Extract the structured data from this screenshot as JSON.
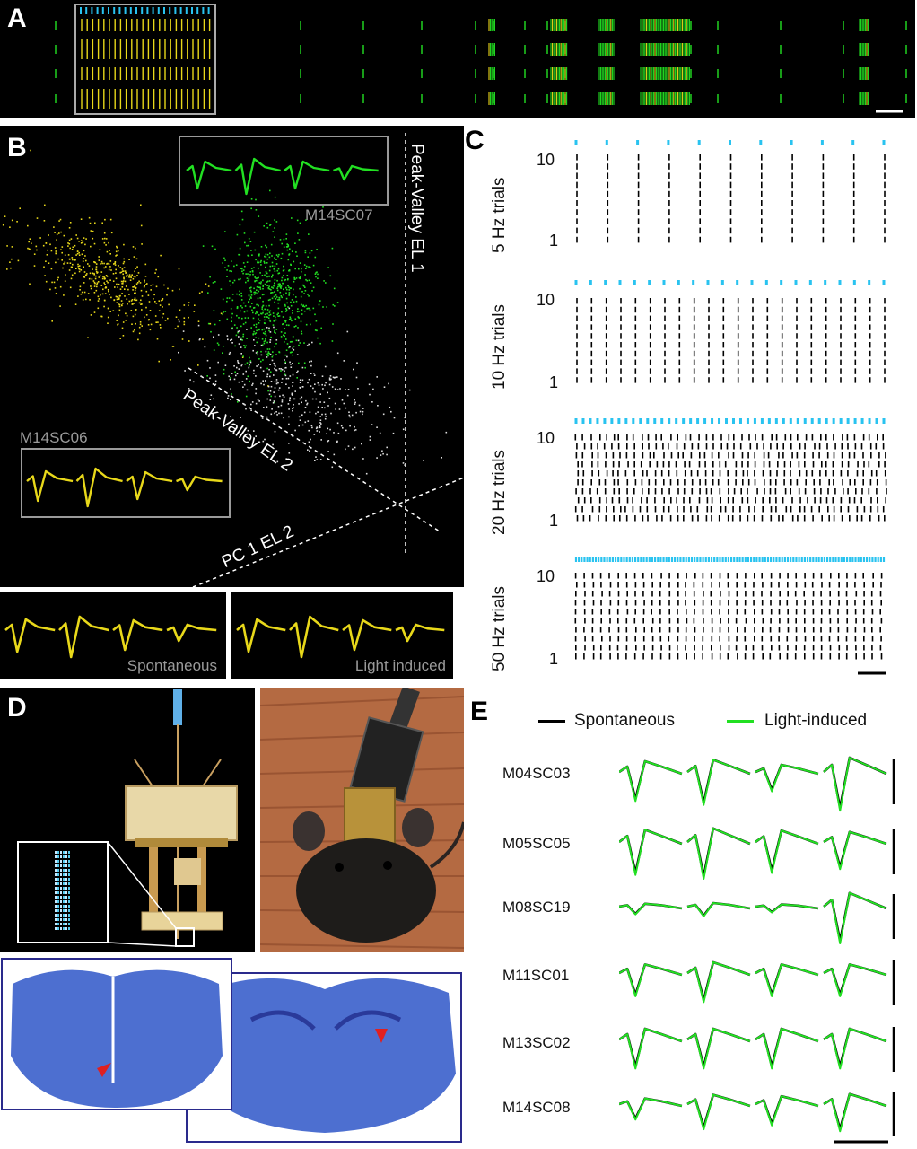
{
  "panels": {
    "a": {
      "letter": "A"
    },
    "b": {
      "letter": "B",
      "unit_top": "M14SC07",
      "unit_bottom": "M14SC06",
      "axis1": "Peak-Valley EL 1",
      "axis2": "Peak-Valley EL 2",
      "axis3": "PC 1 EL 2",
      "wave_left_label": "Spontaneous",
      "wave_right_label": "Light induced"
    },
    "c": {
      "letter": "C",
      "rasters": [
        {
          "label": "5 Hz trials",
          "top_tick": "10",
          "bottom_tick": "1",
          "stim_count": 11
        },
        {
          "label": "10 Hz trials",
          "top_tick": "10",
          "bottom_tick": "1",
          "stim_count": 22
        },
        {
          "label": "20 Hz trials",
          "top_tick": "10",
          "bottom_tick": "1",
          "stim_count": 44
        },
        {
          "label": "50 Hz trials",
          "top_tick": "10",
          "bottom_tick": "1",
          "stim_count": 110
        }
      ]
    },
    "d": {
      "letter": "D"
    },
    "e": {
      "letter": "E",
      "legend": {
        "spontaneous": "Spontaneous",
        "light": "Light-induced"
      },
      "units": [
        "M04SC03",
        "M05SC05",
        "M08SC19",
        "M11SC01",
        "M13SC02",
        "M14SC08"
      ]
    }
  },
  "colors": {
    "green": "#22e022",
    "yellow": "#e8d81a",
    "cyan": "#29c3f0",
    "blue_frame": "#2a2a8c",
    "tissue": "#4d6fd0"
  }
}
